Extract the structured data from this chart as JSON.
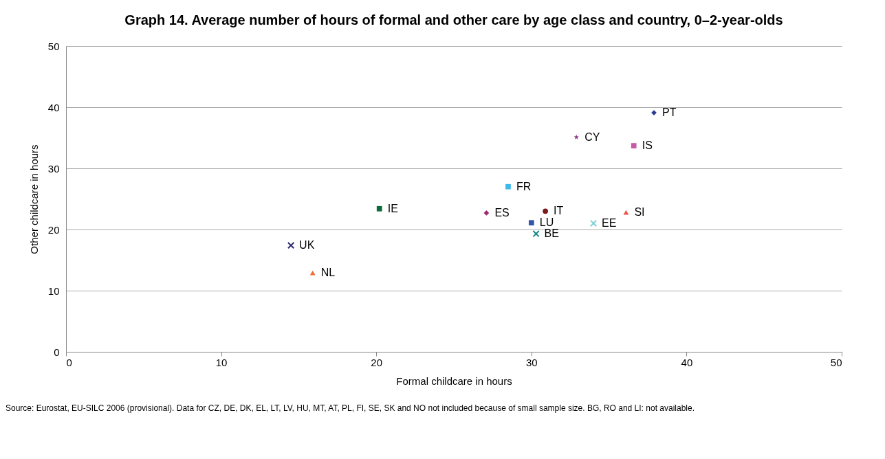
{
  "chart_data": {
    "type": "scatter",
    "title": "Graph 14. Average number of hours of formal and other care by age class and country, 0–2-year-olds",
    "xlabel": "Formal childcare in hours",
    "ylabel": "Other childcare in hours",
    "xlim": [
      0,
      50
    ],
    "xticks": [
      0,
      10,
      20,
      30,
      40,
      50
    ],
    "ylim": [
      0,
      50
    ],
    "yticks": [
      0,
      10,
      20,
      30,
      40,
      50
    ],
    "grid": "y",
    "legend": false,
    "annotations": [
      "Source: Eurostat, EU-SILC 2006 (provisional). Data for CZ, DE, DK, EL, LT, LV, HU, MT, AT, PL, FI, SE, SK and NO not included because of small sample size. BG, RO and LI: not available."
    ],
    "series": [
      {
        "name": "UK",
        "color": "#2e2a6e",
        "marker": "cross",
        "x": [
          14.5
        ],
        "values": [
          17.4
        ]
      },
      {
        "name": "NL",
        "color": "#f26a36",
        "marker": "triangle",
        "x": [
          15.9
        ],
        "values": [
          12.9
        ]
      },
      {
        "name": "IE",
        "color": "#0b6b3a",
        "marker": "square",
        "x": [
          20.2
        ],
        "values": [
          23.4
        ]
      },
      {
        "name": "ES",
        "color": "#9b2a6e",
        "marker": "diamond",
        "x": [
          27.1
        ],
        "values": [
          22.7
        ]
      },
      {
        "name": "FR",
        "color": "#40b8e8",
        "marker": "square",
        "x": [
          28.5
        ],
        "values": [
          27
        ]
      },
      {
        "name": "LU",
        "color": "#3355aa",
        "marker": "square",
        "x": [
          30
        ],
        "values": [
          21.1
        ]
      },
      {
        "name": "BE",
        "color": "#138a8a",
        "marker": "cross",
        "x": [
          30.3
        ],
        "values": [
          19.3
        ]
      },
      {
        "name": "IT",
        "color": "#7b1a1a",
        "marker": "circle",
        "x": [
          30.9
        ],
        "values": [
          23
        ]
      },
      {
        "name": "CY",
        "color": "#8b3a8b",
        "marker": "star",
        "x": [
          32.9
        ],
        "values": [
          35.1
        ]
      },
      {
        "name": "EE",
        "color": "#7fd0d8",
        "marker": "cross",
        "x": [
          34
        ],
        "values": [
          21
        ]
      },
      {
        "name": "SI",
        "color": "#f2524a",
        "marker": "triangle",
        "x": [
          36.1
        ],
        "values": [
          22.8
        ]
      },
      {
        "name": "IS",
        "color": "#c858a8",
        "marker": "square",
        "x": [
          36.6
        ],
        "values": [
          33.7
        ]
      },
      {
        "name": "PT",
        "color": "#2e3a8e",
        "marker": "diamond",
        "x": [
          37.9
        ],
        "values": [
          39.1
        ]
      }
    ]
  }
}
